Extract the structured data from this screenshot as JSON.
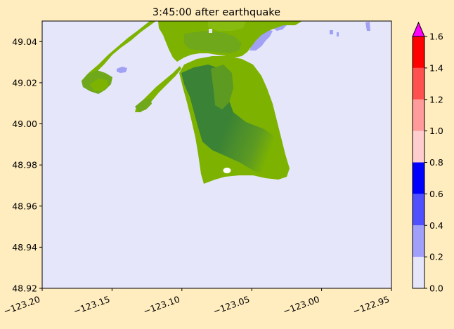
{
  "title": "3:45:00 after earthquake",
  "colors": {
    "figure_bg": "#FFEDBF",
    "water_bg": "#E6E6FA",
    "land_light": "#7DB300",
    "land_mid": "#6FA81A",
    "land_dark": "#3A8235",
    "shallow_water": "#A0A0F5",
    "island_hole": "#FFFFFF"
  },
  "chart_data": {
    "type": "heatmap",
    "title": "3:45:00 after earthquake",
    "xlabel": "",
    "ylabel": "",
    "xlim": [
      -123.2,
      -122.95
    ],
    "ylim": [
      48.92,
      49.05
    ],
    "xticks": [
      {
        "value": -123.2,
        "label": "−123.20"
      },
      {
        "value": -123.15,
        "label": "−123.15"
      },
      {
        "value": -123.1,
        "label": "−123.10"
      },
      {
        "value": -123.05,
        "label": "−123.05"
      },
      {
        "value": -123.0,
        "label": "−123.00"
      },
      {
        "value": -122.95,
        "label": "−122.95"
      }
    ],
    "yticks": [
      {
        "value": 48.92,
        "label": "48.92"
      },
      {
        "value": 48.94,
        "label": "48.94"
      },
      {
        "value": 48.96,
        "label": "48.96"
      },
      {
        "value": 48.98,
        "label": "48.98"
      },
      {
        "value": 49.0,
        "label": "49.00"
      },
      {
        "value": 49.02,
        "label": "49.02"
      },
      {
        "value": 49.04,
        "label": "49.04"
      }
    ],
    "grid": false,
    "colorbar": {
      "ticks": [
        {
          "value": 0.0,
          "label": "0.0"
        },
        {
          "value": 0.2,
          "label": "0.2"
        },
        {
          "value": 0.4,
          "label": "0.4"
        },
        {
          "value": 0.6,
          "label": "0.6"
        },
        {
          "value": 0.8,
          "label": "0.8"
        },
        {
          "value": 1.0,
          "label": "1.0"
        },
        {
          "value": 1.2,
          "label": "1.2"
        },
        {
          "value": 1.4,
          "label": "1.4"
        },
        {
          "value": 1.6,
          "label": "1.6"
        }
      ],
      "bins": [
        {
          "from": 0.0,
          "to": 0.2,
          "color": "#E6E6FA"
        },
        {
          "from": 0.2,
          "to": 0.4,
          "color": "#A0A0FA"
        },
        {
          "from": 0.4,
          "to": 0.6,
          "color": "#5050FF"
        },
        {
          "from": 0.6,
          "to": 0.8,
          "color": "#0000FF"
        },
        {
          "from": 0.8,
          "to": 1.0,
          "color": "#FFCDCD"
        },
        {
          "from": 1.0,
          "to": 1.2,
          "color": "#FF9B9B"
        },
        {
          "from": 1.2,
          "to": 1.4,
          "color": "#FF5050"
        },
        {
          "from": 1.4,
          "to": 1.6,
          "color": "#FF0000"
        }
      ],
      "extend_max_color": "#FF00FF"
    }
  }
}
